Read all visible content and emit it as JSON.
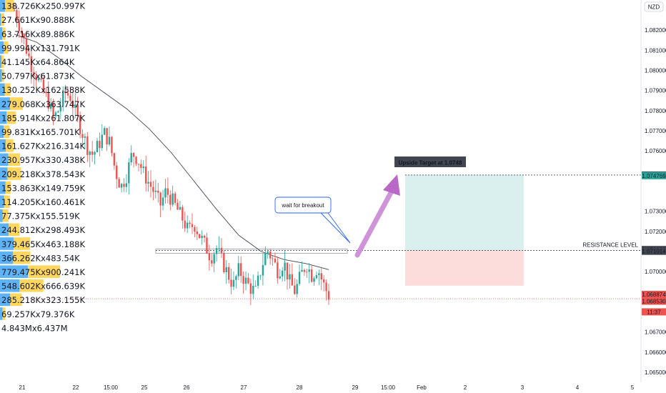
{
  "chart_data": {
    "type": "candlestick",
    "currency_label": "NZD",
    "y_range": [
      1.0645,
      1.0835
    ],
    "x_ticks": [
      "21",
      "22",
      "15:00",
      "25",
      "26",
      "27",
      "28",
      "29",
      "15:00",
      "Feb",
      "2",
      "3",
      "4",
      "5"
    ],
    "price_ticks": [
      {
        "value": 1.082,
        "label": "1.082000"
      },
      {
        "value": 1.081,
        "label": "1.081000"
      },
      {
        "value": 1.08,
        "label": "1.080000"
      },
      {
        "value": 1.079,
        "label": "1.079000"
      },
      {
        "value": 1.078,
        "label": "1.078000"
      },
      {
        "value": 1.077,
        "label": "1.077000"
      },
      {
        "value": 1.076,
        "label": "1.076000"
      },
      {
        "value": 1.073,
        "label": "1.073000"
      },
      {
        "value": 1.072,
        "label": "1.072000"
      },
      {
        "value": 1.07,
        "label": "1.070000"
      },
      {
        "value": 1.067,
        "label": "1.067000"
      },
      {
        "value": 1.066,
        "label": "1.066000"
      },
      {
        "value": 1.065,
        "label": "1.065000"
      }
    ],
    "price_badges": [
      {
        "value": 1.0748,
        "label": "1.074800",
        "color": "#434651"
      },
      {
        "value": 1.07477,
        "label": "1.074769",
        "color": "#26a69a"
      },
      {
        "value": 1.0711,
        "label": "1.071098",
        "color": "#434651"
      },
      {
        "value": 1.07101,
        "label": "1.071014",
        "color": "#434651"
      },
      {
        "value": 1.06887,
        "label": "1.068874",
        "color": "#ef5350"
      },
      {
        "value": 1.06853,
        "label": "1.068530",
        "color": "#ef5350"
      },
      {
        "value": 1.068,
        "label": "11:37",
        "color": "#ef5350"
      }
    ],
    "volume_profile": [
      {
        "label": "138.726Kx250.997K",
        "buy": 138.726,
        "sell": 250.997
      },
      {
        "label": "27.661Kx90.888K",
        "buy": 27.661,
        "sell": 90.888
      },
      {
        "label": "63.716Kx89.886K",
        "buy": 63.716,
        "sell": 89.886
      },
      {
        "label": "99.994Kx131.791K",
        "buy": 99.994,
        "sell": 131.791
      },
      {
        "label": "41.145Kx64.864K",
        "buy": 41.145,
        "sell": 64.864
      },
      {
        "label": "50.797Kx61.873K",
        "buy": 50.797,
        "sell": 61.873
      },
      {
        "label": "130.252Kx162.588K",
        "buy": 130.252,
        "sell": 162.588
      },
      {
        "label": "279.068Kx363.747K",
        "buy": 279.068,
        "sell": 363.747
      },
      {
        "label": "185.914Kx261.807K",
        "buy": 185.914,
        "sell": 261.807
      },
      {
        "label": "99.831Kx165.701K",
        "buy": 99.831,
        "sell": 165.701
      },
      {
        "label": "161.627Kx216.314K",
        "buy": 161.627,
        "sell": 216.314
      },
      {
        "label": "230.957Kx330.438K",
        "buy": 230.957,
        "sell": 330.438
      },
      {
        "label": "209.218Kx378.543K",
        "buy": 209.218,
        "sell": 378.543
      },
      {
        "label": "153.863Kx149.759K",
        "buy": 153.863,
        "sell": 149.759
      },
      {
        "label": "114.205Kx160.461K",
        "buy": 114.205,
        "sell": 160.461
      },
      {
        "label": "77.375Kx155.519K",
        "buy": 77.375,
        "sell": 155.519
      },
      {
        "label": "244.812Kx298.493K",
        "buy": 244.812,
        "sell": 298.493
      },
      {
        "label": "379.465Kx463.188K",
        "buy": 379.465,
        "sell": 463.188
      },
      {
        "label": "366.262Kx483.54K",
        "buy": 366.262,
        "sell": 483.54
      },
      {
        "label": "779.475Kx900.241K",
        "buy": 779.475,
        "sell": 900.241
      },
      {
        "label": "548.602Kx666.639K",
        "buy": 548.602,
        "sell": 666.639
      },
      {
        "label": "285.218Kx323.155K",
        "buy": 285.218,
        "sell": 323.155
      },
      {
        "label": "69.257Kx79.376K",
        "buy": 69.257,
        "sell": 79.376
      },
      {
        "label": "4.843Mx6.437M",
        "buy": 4843,
        "sell": 6437
      }
    ],
    "volume_profile_max": 900.241,
    "price_path": [
      [
        0.0,
        1.083
      ],
      [
        0.01,
        1.0822
      ],
      [
        0.02,
        1.0812
      ],
      [
        0.03,
        1.0803
      ],
      [
        0.04,
        1.0797
      ],
      [
        0.05,
        1.079
      ],
      [
        0.06,
        1.0785
      ],
      [
        0.07,
        1.0776
      ],
      [
        0.08,
        1.0781
      ],
      [
        0.09,
        1.0789
      ],
      [
        0.1,
        1.0787
      ],
      [
        0.11,
        1.0778
      ],
      [
        0.12,
        1.077
      ],
      [
        0.13,
        1.0762
      ],
      [
        0.14,
        1.0758
      ],
      [
        0.15,
        1.0763
      ],
      [
        0.16,
        1.0769
      ],
      [
        0.17,
        1.0764
      ],
      [
        0.18,
        1.075
      ],
      [
        0.19,
        1.0742
      ],
      [
        0.2,
        1.0748
      ],
      [
        0.21,
        1.0759
      ],
      [
        0.22,
        1.0756
      ],
      [
        0.23,
        1.0749
      ],
      [
        0.24,
        1.0744
      ],
      [
        0.25,
        1.0739
      ],
      [
        0.26,
        1.0733
      ],
      [
        0.27,
        1.074
      ],
      [
        0.28,
        1.0736
      ],
      [
        0.29,
        1.0731
      ],
      [
        0.3,
        1.0726
      ],
      [
        0.31,
        1.072
      ],
      [
        0.32,
        1.0724
      ],
      [
        0.33,
        1.0718
      ],
      [
        0.34,
        1.0713
      ],
      [
        0.35,
        1.0707
      ],
      [
        0.36,
        1.0712
      ],
      [
        0.37,
        1.0705
      ],
      [
        0.38,
        1.0699
      ],
      [
        0.39,
        1.0693
      ],
      [
        0.4,
        1.0701
      ],
      [
        0.41,
        1.0696
      ],
      [
        0.42,
        1.0692
      ],
      [
        0.43,
        1.069
      ],
      [
        0.44,
        1.0702
      ],
      [
        0.45,
        1.0711
      ],
      [
        0.46,
        1.0706
      ],
      [
        0.47,
        1.07
      ],
      [
        0.48,
        1.0705
      ],
      [
        0.49,
        1.0695
      ],
      [
        0.5,
        1.069
      ],
      [
        0.51,
        1.0698
      ],
      [
        0.52,
        1.0704
      ],
      [
        0.53,
        1.0698
      ],
      [
        0.54,
        1.0702
      ],
      [
        0.55,
        1.0694
      ],
      [
        0.56,
        1.0688
      ]
    ],
    "moving_average": [
      [
        0.0,
        1.0818
      ],
      [
        0.04,
        1.0814
      ],
      [
        0.08,
        1.0806
      ],
      [
        0.12,
        1.0797
      ],
      [
        0.16,
        1.0789
      ],
      [
        0.2,
        1.0781
      ],
      [
        0.24,
        1.0771
      ],
      [
        0.28,
        1.0759
      ],
      [
        0.32,
        1.0745
      ],
      [
        0.36,
        1.0731
      ],
      [
        0.4,
        1.0718
      ],
      [
        0.44,
        1.071
      ],
      [
        0.48,
        1.0706
      ],
      [
        0.52,
        1.0704
      ],
      [
        0.56,
        1.0701
      ]
    ],
    "resistance": {
      "label": "RESISTANCE LEVEL",
      "value": 1.07105,
      "band_low": 1.07098,
      "band_high": 1.07112
    },
    "target": {
      "label": "Upside Target at 1.0748",
      "value": 1.0748
    },
    "current_price": 1.06865,
    "long_position": {
      "x_start": 0.632,
      "x_end": 0.817,
      "target": 1.0748,
      "entry": 1.07105,
      "stop": 1.0693
    },
    "callout": {
      "text": "wait for breakout"
    }
  }
}
